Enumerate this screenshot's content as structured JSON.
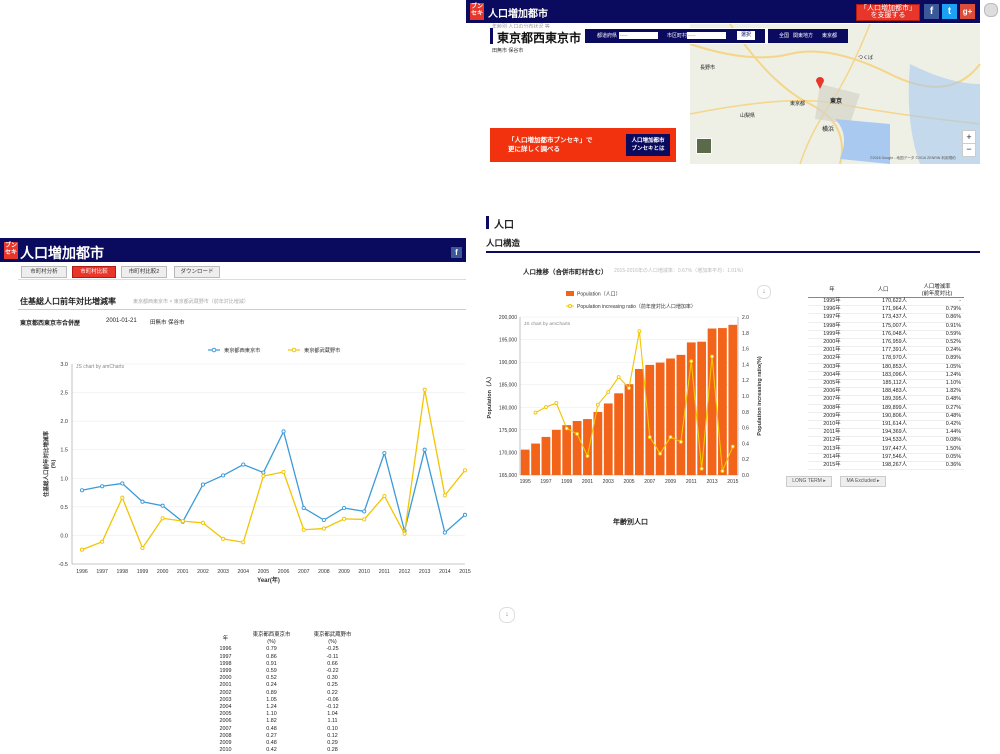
{
  "top_panel": {
    "logo": "ブンセキ",
    "title": "人口増加都市",
    "sub_small": "年齢別 人口の分布状況 等",
    "city": "東京都西東京市",
    "pref_label": "都道府県",
    "pref_value": "-----",
    "city_label": "市区町村",
    "city_value": "-----",
    "select_btn": "選択",
    "nav_links": [
      "全国",
      "関東地方",
      "東京都"
    ],
    "neighbors": "田無市 保谷市",
    "support_btn": "「人口増加都市」\nを支援する",
    "promo_text": "「人口増加都市ブンセキ」で\n更に詳しく調べる",
    "promo_btn": "人口増加都市\nブンセキとは",
    "map_labels": [
      "東京",
      "横浜",
      "長野市",
      "つくば",
      "山梨県",
      "東京都"
    ],
    "map_attrib": "©2016 Google - 地図データ ©2016 ZENRIN 利用規約"
  },
  "left_panel": {
    "logo": "ブンセキ",
    "title": "人口増加都市",
    "tabs": [
      "市町村分析",
      "市町村比較",
      "市町村比較2",
      "ダウンロード"
    ],
    "heading": "住基総人口前年対比増減率",
    "breadcrumb": "東京都西東京市 × 東京都武蔵野市（前年対比増減）",
    "city": "東京都西東京市合併歴",
    "merge_date": "2001-01-21",
    "merge_cities": "田無市 保谷市",
    "credit": "JS chart by amCharts",
    "table_headers": [
      "年",
      "東京都西東京市\n(%)",
      "東京都武蔵野市\n(%)"
    ],
    "table_rows": [
      [
        "1996",
        "0.79",
        "-0.25"
      ],
      [
        "1997",
        "0.86",
        "-0.11"
      ],
      [
        "1998",
        "0.91",
        "0.66"
      ],
      [
        "1999",
        "0.59",
        "-0.22"
      ],
      [
        "2000",
        "0.52",
        "0.30"
      ],
      [
        "2001",
        "0.24",
        "0.25"
      ],
      [
        "2002",
        "0.89",
        "0.22"
      ],
      [
        "2003",
        "1.05",
        "-0.06"
      ],
      [
        "2004",
        "1.24",
        "-0.12"
      ],
      [
        "2005",
        "1.10",
        "1.04"
      ],
      [
        "2006",
        "1.82",
        "1.11"
      ],
      [
        "2007",
        "0.48",
        "0.10"
      ],
      [
        "2008",
        "0.27",
        "0.12"
      ],
      [
        "2009",
        "0.48",
        "0.29"
      ],
      [
        "2010",
        "0.42",
        "0.28"
      ]
    ]
  },
  "right_panel": {
    "section_title": "人口",
    "subsection_title": "人口構造",
    "chart_title": "人口推移（合併市町村含む）",
    "chart_note": "2015-2016年の人口増減率：0.67%（増加率平均：1.01%）",
    "credit": "JS chart by amCharts",
    "age_title": "年齢別人口",
    "table_headers": [
      "年",
      "人口",
      "人口増減率\n(前年度対比)"
    ],
    "table_rows": [
      [
        "1995年",
        "170,622人",
        "-"
      ],
      [
        "1996年",
        "171,964人",
        "0.79%"
      ],
      [
        "1997年",
        "173,437人",
        "0.86%"
      ],
      [
        "1998年",
        "175,007人",
        "0.91%"
      ],
      [
        "1999年",
        "176,048人",
        "0.59%"
      ],
      [
        "2000年",
        "176,959人",
        "0.52%"
      ],
      [
        "2001年",
        "177,391人",
        "0.24%"
      ],
      [
        "2002年",
        "178,970人",
        "0.89%"
      ],
      [
        "2003年",
        "180,853人",
        "1.05%"
      ],
      [
        "2004年",
        "183,096人",
        "1.24%"
      ],
      [
        "2005年",
        "185,112人",
        "1.10%"
      ],
      [
        "2006年",
        "188,483人",
        "1.82%"
      ],
      [
        "2007年",
        "189,395人",
        "0.48%"
      ],
      [
        "2008年",
        "189,899人",
        "0.27%"
      ],
      [
        "2009年",
        "190,806人",
        "0.48%"
      ],
      [
        "2010年",
        "191,614人",
        "0.42%"
      ],
      [
        "2011年",
        "194,369人",
        "1.44%"
      ],
      [
        "2012年",
        "194,533人",
        "0.08%"
      ],
      [
        "2013年",
        "197,447人",
        "1.50%"
      ],
      [
        "2014年",
        "197,546人",
        "0.05%"
      ],
      [
        "2015年",
        "198,267人",
        "0.36%"
      ]
    ],
    "btn_long_term": "LONG TERM",
    "btn_ma": "MA Excluded"
  },
  "chart_data": [
    {
      "type": "line",
      "x": [
        1996,
        1997,
        1998,
        1999,
        2000,
        2001,
        2002,
        2003,
        2004,
        2005,
        2006,
        2007,
        2008,
        2009,
        2010,
        2011,
        2012,
        2013,
        2014,
        2015
      ],
      "series": [
        {
          "name": "東京都西東京市",
          "color": "#3a9ad9",
          "values": [
            0.79,
            0.86,
            0.91,
            0.59,
            0.52,
            0.24,
            0.89,
            1.05,
            1.24,
            1.1,
            1.82,
            0.48,
            0.27,
            0.48,
            0.42,
            1.44,
            0.08,
            1.5,
            0.05,
            0.36
          ]
        },
        {
          "name": "東京都武蔵野市",
          "color": "#f2c500",
          "values": [
            -0.25,
            -0.11,
            0.66,
            -0.22,
            0.3,
            0.25,
            0.22,
            -0.06,
            -0.12,
            1.04,
            1.11,
            0.1,
            0.12,
            0.29,
            0.28,
            0.69,
            0.03,
            2.55,
            0.7,
            1.14
          ]
        }
      ],
      "ylabel": "住基総人口前年対比増減率\n(%)",
      "xlabel": "Year(年)",
      "ylim": [
        -0.5,
        3.0
      ],
      "yticks": [
        -0.5,
        0.0,
        0.5,
        1.0,
        1.5,
        2.0,
        2.5,
        3.0
      ],
      "legend": "top-center"
    },
    {
      "type": "bar",
      "categories": [
        1995,
        1996,
        1997,
        1998,
        1999,
        2000,
        2001,
        2002,
        2003,
        2004,
        2005,
        2006,
        2007,
        2008,
        2009,
        2010,
        2011,
        2012,
        2013,
        2014,
        2015
      ],
      "series": [
        {
          "name": "Population（人口）",
          "color": "#f26419",
          "values": [
            170622,
            171964,
            173437,
            175007,
            176048,
            176959,
            177391,
            178970,
            180853,
            183096,
            185112,
            188483,
            189395,
            189899,
            190806,
            191614,
            194369,
            194533,
            197447,
            197546,
            198267
          ]
        },
        {
          "name": "Population increasing ratio（前年度対比人口増加率）",
          "color": "#f2c500",
          "type": "line",
          "values": [
            null,
            0.79,
            0.86,
            0.91,
            0.59,
            0.52,
            0.24,
            0.89,
            1.05,
            1.24,
            1.1,
            1.82,
            0.48,
            0.27,
            0.48,
            0.42,
            1.44,
            0.08,
            1.5,
            0.05,
            0.36
          ]
        }
      ],
      "ylabel": "Population（人）",
      "y2label": "Population increasing ratio(%)",
      "ylim": [
        165000,
        200000
      ],
      "y2lim": [
        0,
        2.0
      ],
      "yticks": [
        165000,
        170000,
        175000,
        180000,
        185000,
        190000,
        195000,
        200000
      ],
      "y2ticks": [
        0.0,
        0.2,
        0.4,
        0.6,
        0.8,
        1.0,
        1.2,
        1.4,
        1.6,
        1.8,
        2.0
      ],
      "xticks": [
        1995,
        1997,
        1999,
        2001,
        2003,
        2005,
        2007,
        2009,
        2011,
        2013,
        2015
      ],
      "legend": "top-center"
    }
  ]
}
